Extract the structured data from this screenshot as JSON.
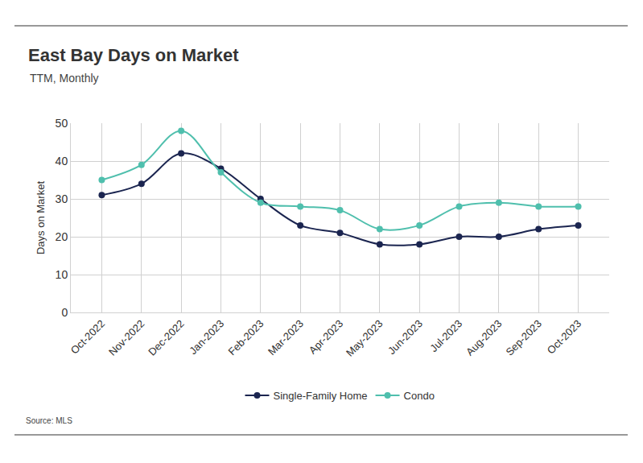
{
  "chart_data": {
    "type": "line",
    "title": "East Bay Days on Market",
    "subtitle": "TTM, Monthly",
    "y_label": "Days on Market",
    "source": "Source: MLS",
    "categories": [
      "Oct-2022",
      "Nov-2022",
      "Dec-2022",
      "Jan-2023",
      "Feb-2023",
      "Mar-2023",
      "Apr-2023",
      "May-2023",
      "Jun-2023",
      "Jul-2023",
      "Aug-2023",
      "Sep-2023",
      "Oct-2023"
    ],
    "series": [
      {
        "name": "Single-Family Home",
        "color": "#1b2550",
        "values": [
          31,
          34,
          42,
          38,
          30,
          23,
          21,
          18,
          18,
          20,
          20,
          22,
          23
        ]
      },
      {
        "name": "Condo",
        "color": "#4fbfad",
        "values": [
          35,
          39,
          48,
          37,
          29,
          28,
          27,
          22,
          23,
          28,
          29,
          28,
          28
        ]
      }
    ],
    "ylim": [
      0,
      50
    ],
    "yticks": [
      0,
      10,
      20,
      30,
      40,
      50
    ],
    "grid": true,
    "legend": "bottom",
    "marker": "circle",
    "line_style": "spline"
  }
}
